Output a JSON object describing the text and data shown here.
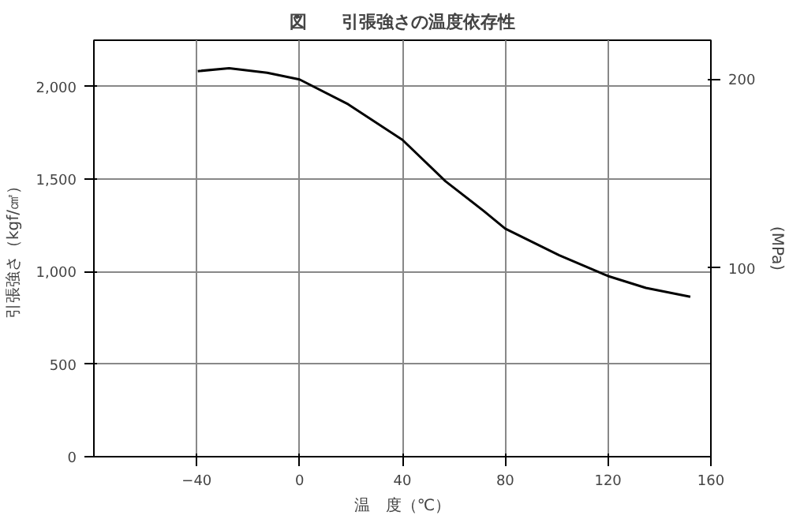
{
  "chart_data": {
    "type": "line",
    "title": "図　　引張強さの温度依存性",
    "xlabel": "温　度（℃）",
    "ylabel": "引張強さ（kgf/㎠）",
    "y2label": "(MPa)",
    "xlim": [
      -80,
      160
    ],
    "xticks": [
      {
        "value": -40,
        "label": "−40"
      },
      0,
      40,
      80,
      120,
      160
    ],
    "ylim": [
      0,
      2250
    ],
    "yticks": [
      0,
      500,
      {
        "value": 1000,
        "label": "1,000"
      },
      {
        "value": 1500,
        "label": "1,500"
      },
      {
        "value": 2000,
        "label": "2,000"
      }
    ],
    "y2lim": [
      0,
      220.6
    ],
    "y2ticks": [
      100,
      200
    ],
    "grid": true,
    "series": [
      {
        "color": "#000000",
        "x": [
          -39.6,
          -27.4,
          -12.6,
          0,
          18.9,
          40,
          56.8,
          71.6,
          80,
          101,
          120,
          134.7,
          152
        ],
        "values": [
          2083,
          2099,
          2074,
          2038,
          1904,
          1712,
          1488,
          1328,
          1232,
          1088,
          976,
          912,
          864
        ]
      }
    ]
  }
}
